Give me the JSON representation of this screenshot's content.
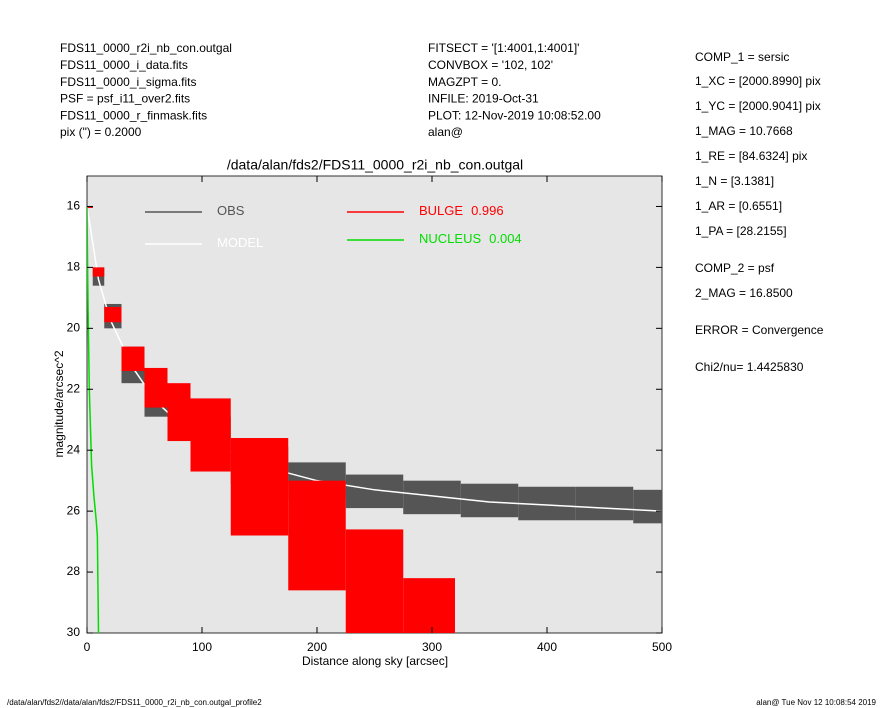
{
  "header": {
    "left": [
      "FDS11_0000_r2i_nb_con.outgal",
      "FDS11_0000_i_data.fits",
      "FDS11_0000_i_sigma.fits",
      "PSF     = psf_i11_over2.fits",
      "FDS11_0000_r_finmask.fits",
      "pix (\") =  0.2000"
    ],
    "middle": [
      "FITSECT = '[1:4001,1:4001]'",
      "CONVBOX = '102, 102'",
      "MAGZPT  =              0.",
      "INFILE: 2019-Oct-31",
      "PLOT: 12-Nov-2019 10:08:52.00",
      "alan@"
    ],
    "right": [
      "COMP_1  = sersic",
      "1_XC    = [2000.8990] pix",
      "1_YC    = [2000.9041] pix",
      "1_MAG   = 10.7668",
      "1_RE    = [84.6324] pix",
      "1_N     = [3.1381]",
      "1_AR    = [0.6551]",
      "1_PA    = [28.2155]",
      "COMP_2  = psf",
      "2_MAG   = 16.8500",
      "ERROR   = Convergence",
      "Chi2/nu=      1.4425830"
    ]
  },
  "footer": {
    "left": "/data/alan/fds2//data/alan/fds2/FDS11_0000_r2i_nb_con.outgal_profile2",
    "right": "alan@  Tue Nov 12 10:08:54 2019"
  },
  "chart_data": {
    "type": "profile",
    "title": "/data/alan/fds2/FDS11_0000_r2i_nb_con.outgal",
    "x_label": "Distance along sky [arcsec]",
    "y_label": "magnitude/arcsec^2",
    "xlim": [
      0,
      500
    ],
    "ylim": [
      15,
      30
    ],
    "y_inverted": true,
    "xticks": [
      0,
      100,
      200,
      300,
      400,
      500
    ],
    "yticks": [
      16,
      18,
      20,
      22,
      24,
      26,
      28,
      30
    ],
    "series": [
      {
        "name": "OBS",
        "color": "#555555",
        "style": "band",
        "x": [
          0,
          10,
          20,
          40,
          60,
          80,
          100,
          150,
          200,
          250,
          300,
          350,
          400,
          450,
          500
        ],
        "low": [
          16,
          18,
          19.2,
          20.6,
          21.6,
          22.3,
          22.9,
          23.9,
          24.4,
          24.8,
          25,
          25.1,
          25.2,
          25.2,
          25.3
        ],
        "high": [
          16,
          18.6,
          20,
          21.8,
          22.9,
          23.6,
          24.1,
          25.1,
          25.6,
          25.9,
          26.1,
          26.2,
          26.3,
          26.3,
          26.4
        ]
      },
      {
        "name": "MODEL",
        "color": "#ffffff",
        "style": "line",
        "x": [
          0,
          10,
          20,
          40,
          60,
          80,
          100,
          150,
          200,
          250,
          300,
          350,
          400,
          450,
          500
        ],
        "values": [
          16,
          18.4,
          19.7,
          21.3,
          22.4,
          23.1,
          23.6,
          24.5,
          25,
          25.3,
          25.5,
          25.7,
          25.8,
          25.9,
          26
        ]
      },
      {
        "name": "BULGE",
        "fraction": 0.996,
        "color": "#ff0000",
        "style": "band",
        "x": [
          0,
          10,
          20,
          40,
          60,
          80,
          100,
          150,
          200,
          250,
          300,
          340
        ],
        "low": [
          16,
          18,
          19.3,
          20.6,
          21.3,
          21.8,
          22.3,
          23.6,
          25,
          26.6,
          28.2,
          30
        ],
        "high": [
          16,
          18.3,
          19.8,
          21.4,
          22.6,
          23.7,
          24.7,
          26.8,
          28.6,
          30,
          30,
          30
        ]
      },
      {
        "name": "NUCLEUS",
        "fraction": 0.004,
        "color": "#00dd00",
        "style": "line",
        "x": [
          0,
          0.5,
          1,
          2,
          4,
          6,
          8,
          9,
          10
        ],
        "values": [
          16,
          18,
          19.5,
          22,
          24.5,
          25.5,
          26.3,
          26.8,
          30
        ]
      }
    ]
  }
}
